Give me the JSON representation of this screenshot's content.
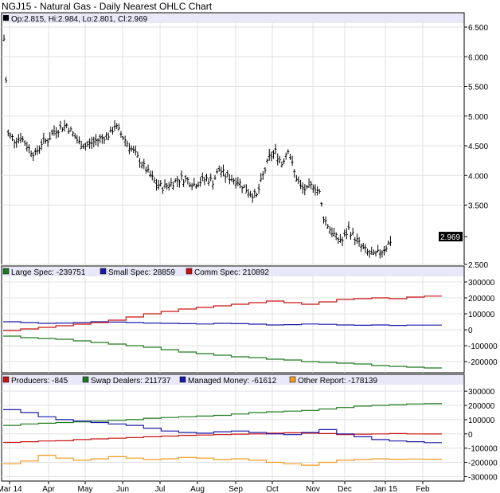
{
  "title": "NGJ15 - Natural Gas - Daily Nearest OHLC Chart",
  "chart_data": [
    {
      "type": "ohlc",
      "panel": "price",
      "ohlc_header": {
        "open": "Op:2.815",
        "high": "Hi:2.984",
        "low": "Lo:2.801",
        "close": "Cl:2.969"
      },
      "last_price_label": "2.969",
      "y_ticks": [
        "6.500",
        "6.000",
        "5.500",
        "5.000",
        "4.500",
        "4.000",
        "3.500",
        "2.969",
        "2.500"
      ],
      "y_tick_values": [
        6.5,
        6.0,
        5.5,
        5.0,
        4.5,
        4.0,
        3.5,
        2.969,
        2.5
      ],
      "ylim": [
        2.5,
        6.5
      ],
      "x_ticks": [
        "Mar 14",
        "Apr",
        "May",
        "Jun",
        "Jul",
        "Aug",
        "Sep",
        "Oct",
        "Nov",
        "Dec",
        "Jan 15",
        "Feb"
      ],
      "price_path": [
        [
          0,
          6.3
        ],
        [
          1,
          5.6
        ],
        [
          2,
          4.7
        ],
        [
          5,
          4.6
        ],
        [
          8,
          4.65
        ],
        [
          12,
          4.45
        ],
        [
          15,
          4.35
        ],
        [
          18,
          4.55
        ],
        [
          21,
          4.6
        ],
        [
          24,
          4.75
        ],
        [
          27,
          4.8
        ],
        [
          30,
          4.85
        ],
        [
          33,
          4.7
        ],
        [
          36,
          4.55
        ],
        [
          39,
          4.5
        ],
        [
          42,
          4.55
        ],
        [
          45,
          4.6
        ],
        [
          48,
          4.65
        ],
        [
          51,
          4.7
        ],
        [
          53,
          4.85
        ],
        [
          55,
          4.75
        ],
        [
          58,
          4.6
        ],
        [
          61,
          4.45
        ],
        [
          64,
          4.3
        ],
        [
          67,
          4.15
        ],
        [
          70,
          4.0
        ],
        [
          73,
          3.85
        ],
        [
          76,
          3.8
        ],
        [
          79,
          3.85
        ],
        [
          82,
          3.9
        ],
        [
          85,
          3.95
        ],
        [
          88,
          3.92
        ],
        [
          91,
          3.85
        ],
        [
          94,
          3.9
        ],
        [
          97,
          3.95
        ],
        [
          100,
          3.9
        ],
        [
          103,
          4.1
        ],
        [
          106,
          4.0
        ],
        [
          109,
          3.95
        ],
        [
          112,
          3.9
        ],
        [
          115,
          3.8
        ],
        [
          118,
          3.7
        ],
        [
          121,
          3.65
        ],
        [
          124,
          4.0
        ],
        [
          127,
          4.3
        ],
        [
          130,
          4.4
        ],
        [
          133,
          4.2
        ],
        [
          136,
          4.45
        ],
        [
          139,
          4.05
        ],
        [
          142,
          3.8
        ],
        [
          145,
          3.75
        ],
        [
          148,
          3.85
        ],
        [
          151,
          3.7
        ],
        [
          153,
          3.3
        ],
        [
          156,
          3.1
        ],
        [
          159,
          2.95
        ],
        [
          162,
          2.9
        ],
        [
          165,
          3.1
        ],
        [
          168,
          2.95
        ],
        [
          171,
          2.8
        ],
        [
          174,
          2.7
        ],
        [
          177,
          2.65
        ],
        [
          180,
          2.7
        ],
        [
          183,
          2.8
        ],
        [
          186,
          2.95
        ]
      ],
      "x_max": 210
    },
    {
      "type": "line",
      "panel": "cot-1",
      "legend": [
        {
          "label": "Large Spec: -239751",
          "color": "#1e7a1e"
        },
        {
          "label": "Small Spec: 28859",
          "color": "#1a1aaa"
        },
        {
          "label": "Comm Spec: 210892",
          "color": "#cc1111"
        }
      ],
      "y_ticks": [
        "300000",
        "200000",
        "100000",
        "0",
        "-100000",
        "-200000"
      ],
      "y_tick_values": [
        300000,
        200000,
        100000,
        0,
        -100000,
        -200000
      ],
      "ylim": [
        -260000,
        330000
      ],
      "series": [
        {
          "name": "Large Spec",
          "color": "#1e7a1e",
          "values": [
            -40000,
            -50000,
            -55000,
            -60000,
            -70000,
            -80000,
            -90000,
            -100000,
            -110000,
            -125000,
            -140000,
            -150000,
            -160000,
            -170000,
            -175000,
            -185000,
            -190000,
            -200000,
            -205000,
            -210000,
            -215000,
            -225000,
            -230000,
            -235000,
            -240000
          ]
        },
        {
          "name": "Small Spec",
          "color": "#1a1aaa",
          "values": [
            50000,
            45000,
            40000,
            42000,
            45000,
            50000,
            48000,
            45000,
            42000,
            40000,
            38000,
            36000,
            40000,
            38000,
            35000,
            30000,
            32000,
            36000,
            34000,
            30000,
            28000,
            30000,
            27000,
            29000,
            28859
          ]
        },
        {
          "name": "Comm Spec",
          "color": "#cc1111",
          "values": [
            -5000,
            5000,
            15000,
            25000,
            35000,
            45000,
            60000,
            80000,
            100000,
            115000,
            130000,
            140000,
            150000,
            160000,
            170000,
            180000,
            170000,
            160000,
            175000,
            190000,
            195000,
            200000,
            195000,
            205000,
            210892
          ]
        }
      ]
    },
    {
      "type": "line",
      "panel": "cot-2",
      "legend": [
        {
          "label": "Producers: -845",
          "color": "#cc1111"
        },
        {
          "label": "Swap Dealers: 211737",
          "color": "#1e7a1e"
        },
        {
          "label": "Managed Money: -61612",
          "color": "#1a1aaa"
        },
        {
          "label": "Other Report: -178139",
          "color": "#f39a1a"
        }
      ],
      "y_ticks": [
        "300000",
        "200000",
        "100000",
        "0",
        "-100000",
        "-200000",
        "-300000"
      ],
      "y_tick_values": [
        300000,
        200000,
        100000,
        0,
        -100000,
        -200000,
        -300000
      ],
      "ylim": [
        -320000,
        340000
      ],
      "series": [
        {
          "name": "Producers",
          "color": "#cc1111",
          "values": [
            -60000,
            -55000,
            -50000,
            -48000,
            -40000,
            -35000,
            -30000,
            -25000,
            -20000,
            -15000,
            -10000,
            -8000,
            -5000,
            -2000,
            0,
            5000,
            8000,
            5000,
            2000,
            -5000,
            -2000,
            0,
            2000,
            0,
            -845
          ]
        },
        {
          "name": "Swap Dealers",
          "color": "#1e7a1e",
          "values": [
            60000,
            70000,
            75000,
            80000,
            85000,
            90000,
            95000,
            100000,
            110000,
            115000,
            120000,
            125000,
            130000,
            140000,
            150000,
            155000,
            160000,
            165000,
            175000,
            185000,
            195000,
            200000,
            205000,
            210000,
            211737
          ]
        },
        {
          "name": "Managed Money",
          "color": "#1a1aaa",
          "values": [
            170000,
            150000,
            120000,
            100000,
            90000,
            80000,
            70000,
            60000,
            40000,
            20000,
            10000,
            5000,
            15000,
            20000,
            10000,
            0,
            -5000,
            10000,
            30000,
            0,
            -20000,
            -40000,
            -50000,
            -55000,
            -61612
          ]
        },
        {
          "name": "Other Report",
          "color": "#f39a1a",
          "values": [
            -210000,
            -190000,
            -150000,
            -170000,
            -185000,
            -175000,
            -160000,
            -170000,
            -180000,
            -175000,
            -165000,
            -170000,
            -180000,
            -175000,
            -185000,
            -200000,
            -210000,
            -220000,
            -200000,
            -185000,
            -180000,
            -175000,
            -178000,
            -176000,
            -178139
          ]
        }
      ]
    }
  ]
}
